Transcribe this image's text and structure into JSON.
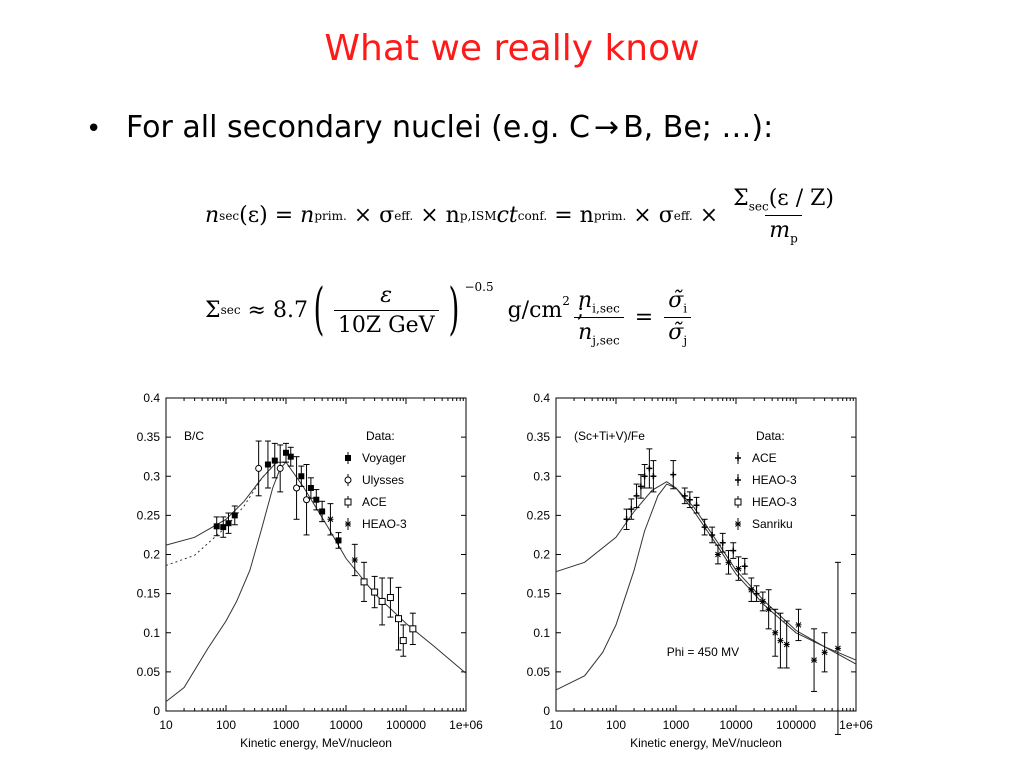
{
  "slide": {
    "title": "What we really know",
    "bullet_marker": "•",
    "bullet_text_prefix": "For all secondary nuclei (e.g. C ",
    "bullet_arrow": "→",
    "bullet_text_suffix": " B, Be; …):"
  },
  "equations": {
    "eq1": {
      "lhs": "n",
      "lhs_sub": "sec",
      "arg": "(ε) = ",
      "t1": "n",
      "t1_sub": "prim.",
      "t2": " × σ",
      "t2_sub": "eff.",
      "t3": " × n",
      "t3_sub": "p,ISM",
      "t4": "ct",
      "t4_sub": "conf.",
      "t5": " = n",
      "t5_sub": "prim.",
      "t6": " × σ",
      "t6_sub": "eff.",
      "t7": " × ",
      "frac_num": "Σ",
      "frac_num_sub": "sec",
      "frac_num_rest": "(ε / Z)",
      "frac_den": "m",
      "frac_den_sub": "p"
    },
    "eq2": {
      "lhs": "Σ",
      "lhs_sub": "sec",
      "approx": " ≈ 8.7",
      "frac_num": "ε",
      "frac_den": "10Z GeV",
      "exponent": "−0.5",
      "units": "g/cm",
      "units_sup": "2",
      "sep": " ;"
    },
    "eq3": {
      "num": "n",
      "num_sub": "i,sec",
      "den": "n",
      "den_sub": "j,sec",
      "eq": " = ",
      "rnum": "σ̃",
      "rnum_sub": "i",
      "rden": "σ̃",
      "rden_sub": "j"
    }
  },
  "chart_data": [
    {
      "type": "line",
      "title": "B/C",
      "xlabel": "Kinetic energy, MeV/nucleon",
      "ylabel": "",
      "xscale": "log",
      "xlim": [
        10,
        1000000
      ],
      "ylim": [
        0,
        0.4
      ],
      "xticks": [
        "10",
        "100",
        "1000",
        "10000",
        "100000",
        "1e+06"
      ],
      "yticks": [
        "0",
        "0.05",
        "0.1",
        "0.15",
        "0.2",
        "0.25",
        "0.3",
        "0.35",
        "0.4"
      ],
      "legend_title": "Data:",
      "legend_position": "top-right",
      "legend": [
        "Voyager",
        "Ulysses",
        "ACE",
        "HEAO-3"
      ],
      "series": [
        {
          "style": "solid",
          "x": [
            10,
            30,
            100,
            200,
            400,
            700,
            1000,
            2000,
            5000,
            10000,
            30000,
            100000,
            300000,
            1000000
          ],
          "y": [
            0.212,
            0.222,
            0.245,
            0.268,
            0.298,
            0.318,
            0.318,
            0.285,
            0.235,
            0.195,
            0.15,
            0.112,
            0.082,
            0.048
          ]
        },
        {
          "style": "dotted",
          "x": [
            10,
            30,
            100,
            200,
            400,
            700,
            1000
          ],
          "y": [
            0.186,
            0.199,
            0.235,
            0.262,
            0.298,
            0.318,
            0.318
          ]
        },
        {
          "style": "solid",
          "x": [
            10,
            20,
            50,
            100,
            150,
            250,
            400,
            600,
            800,
            1000
          ],
          "y": [
            0.012,
            0.03,
            0.08,
            0.115,
            0.14,
            0.18,
            0.235,
            0.285,
            0.31,
            0.318
          ]
        }
      ],
      "points": [
        {
          "x": 70,
          "y": 0.236,
          "err": 0.012,
          "marker": "filled"
        },
        {
          "x": 90,
          "y": 0.235,
          "err": 0.013,
          "marker": "filled"
        },
        {
          "x": 110,
          "y": 0.24,
          "err": 0.013,
          "marker": "filled"
        },
        {
          "x": 140,
          "y": 0.25,
          "err": 0.012,
          "marker": "filled"
        },
        {
          "x": 350,
          "y": 0.31,
          "err": 0.035,
          "marker": "circle"
        },
        {
          "x": 500,
          "y": 0.315,
          "err": 0.03,
          "marker": "filled"
        },
        {
          "x": 650,
          "y": 0.32,
          "err": 0.022,
          "marker": "filled"
        },
        {
          "x": 800,
          "y": 0.31,
          "err": 0.03,
          "marker": "circle"
        },
        {
          "x": 1000,
          "y": 0.33,
          "err": 0.012,
          "marker": "filled"
        },
        {
          "x": 1200,
          "y": 0.325,
          "err": 0.012,
          "marker": "filled"
        },
        {
          "x": 1500,
          "y": 0.285,
          "err": 0.04,
          "marker": "circle"
        },
        {
          "x": 1800,
          "y": 0.3,
          "err": 0.013,
          "marker": "filled"
        },
        {
          "x": 2200,
          "y": 0.27,
          "err": 0.045,
          "marker": "circle"
        },
        {
          "x": 2600,
          "y": 0.285,
          "err": 0.013,
          "marker": "filled"
        },
        {
          "x": 3200,
          "y": 0.27,
          "err": 0.013,
          "marker": "filled"
        },
        {
          "x": 4000,
          "y": 0.255,
          "err": 0.013,
          "marker": "filled"
        },
        {
          "x": 5500,
          "y": 0.245,
          "err": 0.02,
          "marker": "star"
        },
        {
          "x": 7500,
          "y": 0.218,
          "err": 0.01,
          "marker": "filled"
        },
        {
          "x": 14000,
          "y": 0.193,
          "err": 0.02,
          "marker": "star"
        },
        {
          "x": 20000,
          "y": 0.165,
          "err": 0.025,
          "marker": "square"
        },
        {
          "x": 30000,
          "y": 0.152,
          "err": 0.02,
          "marker": "square"
        },
        {
          "x": 40000,
          "y": 0.14,
          "err": 0.03,
          "marker": "square"
        },
        {
          "x": 55000,
          "y": 0.145,
          "err": 0.025,
          "marker": "square"
        },
        {
          "x": 75000,
          "y": 0.118,
          "err": 0.04,
          "marker": "square"
        },
        {
          "x": 90000,
          "y": 0.09,
          "err": 0.02,
          "marker": "square"
        },
        {
          "x": 130000,
          "y": 0.105,
          "err": 0.02,
          "marker": "square"
        }
      ]
    },
    {
      "type": "line",
      "title": "(Sc+Ti+V)/Fe",
      "xlabel": "Kinetic energy, MeV/nucleon",
      "ylabel": "",
      "xscale": "log",
      "xlim": [
        10,
        1000000
      ],
      "ylim": [
        0,
        0.4
      ],
      "xticks": [
        "10",
        "100",
        "1000",
        "10000",
        "100000",
        "1e+06"
      ],
      "yticks": [
        "0",
        "0.05",
        "0.1",
        "0.15",
        "0.2",
        "0.25",
        "0.3",
        "0.35",
        "0.4"
      ],
      "legend_title": "Data:",
      "legend_position": "top-right",
      "legend": [
        "ACE",
        "HEAO-3",
        "HEAO-3",
        "Sanriku"
      ],
      "annotation": "Phi = 450 MV",
      "series": [
        {
          "style": "solid",
          "x": [
            10,
            30,
            100,
            200,
            400,
            700,
            1000,
            2000,
            5000,
            10000,
            30000,
            100000,
            300000,
            1000000
          ],
          "y": [
            0.178,
            0.19,
            0.222,
            0.255,
            0.282,
            0.293,
            0.285,
            0.255,
            0.21,
            0.175,
            0.135,
            0.1,
            0.082,
            0.065
          ]
        },
        {
          "style": "solid",
          "x": [
            10,
            30,
            60,
            100,
            200,
            300,
            500,
            700,
            1000,
            2000,
            5000,
            10000,
            30000,
            100000,
            300000,
            1000000
          ],
          "y": [
            0.027,
            0.045,
            0.075,
            0.11,
            0.18,
            0.23,
            0.275,
            0.29,
            0.285,
            0.26,
            0.215,
            0.18,
            0.14,
            0.103,
            0.082,
            0.06
          ]
        }
      ],
      "points": [
        {
          "x": 150,
          "y": 0.245,
          "err": 0.013,
          "marker": "cross"
        },
        {
          "x": 180,
          "y": 0.258,
          "err": 0.013,
          "marker": "cross"
        },
        {
          "x": 220,
          "y": 0.275,
          "err": 0.015,
          "marker": "cross"
        },
        {
          "x": 260,
          "y": 0.287,
          "err": 0.015,
          "marker": "cross"
        },
        {
          "x": 300,
          "y": 0.3,
          "err": 0.015,
          "marker": "cross"
        },
        {
          "x": 360,
          "y": 0.31,
          "err": 0.025,
          "marker": "cross"
        },
        {
          "x": 420,
          "y": 0.3,
          "err": 0.02,
          "marker": "cross"
        },
        {
          "x": 900,
          "y": 0.302,
          "err": 0.018,
          "marker": "cross"
        },
        {
          "x": 1400,
          "y": 0.275,
          "err": 0.01,
          "marker": "cross"
        },
        {
          "x": 1700,
          "y": 0.27,
          "err": 0.01,
          "marker": "cross"
        },
        {
          "x": 2200,
          "y": 0.263,
          "err": 0.01,
          "marker": "cross"
        },
        {
          "x": 3000,
          "y": 0.235,
          "err": 0.01,
          "marker": "cross"
        },
        {
          "x": 4000,
          "y": 0.225,
          "err": 0.01,
          "marker": "cross"
        },
        {
          "x": 5000,
          "y": 0.2,
          "err": 0.012,
          "marker": "star"
        },
        {
          "x": 6000,
          "y": 0.215,
          "err": 0.012,
          "marker": "cross"
        },
        {
          "x": 7500,
          "y": 0.19,
          "err": 0.015,
          "marker": "star"
        },
        {
          "x": 9000,
          "y": 0.205,
          "err": 0.01,
          "marker": "cross"
        },
        {
          "x": 11000,
          "y": 0.182,
          "err": 0.015,
          "marker": "star"
        },
        {
          "x": 14000,
          "y": 0.185,
          "err": 0.01,
          "marker": "cross"
        },
        {
          "x": 18000,
          "y": 0.155,
          "err": 0.015,
          "marker": "star"
        },
        {
          "x": 22000,
          "y": 0.15,
          "err": 0.01,
          "marker": "cross"
        },
        {
          "x": 28000,
          "y": 0.14,
          "err": 0.012,
          "marker": "star"
        },
        {
          "x": 35000,
          "y": 0.13,
          "err": 0.025,
          "marker": "star"
        },
        {
          "x": 45000,
          "y": 0.1,
          "err": 0.03,
          "marker": "star"
        },
        {
          "x": 55000,
          "y": 0.09,
          "err": 0.035,
          "marker": "star"
        },
        {
          "x": 70000,
          "y": 0.085,
          "err": 0.03,
          "marker": "star"
        },
        {
          "x": 110000,
          "y": 0.11,
          "err": 0.02,
          "marker": "star"
        },
        {
          "x": 200000,
          "y": 0.065,
          "err": 0.04,
          "marker": "star"
        },
        {
          "x": 300000,
          "y": 0.075,
          "err": 0.025,
          "marker": "star"
        },
        {
          "x": 500000,
          "y": 0.08,
          "err": 0.11,
          "marker": "star"
        }
      ]
    }
  ]
}
